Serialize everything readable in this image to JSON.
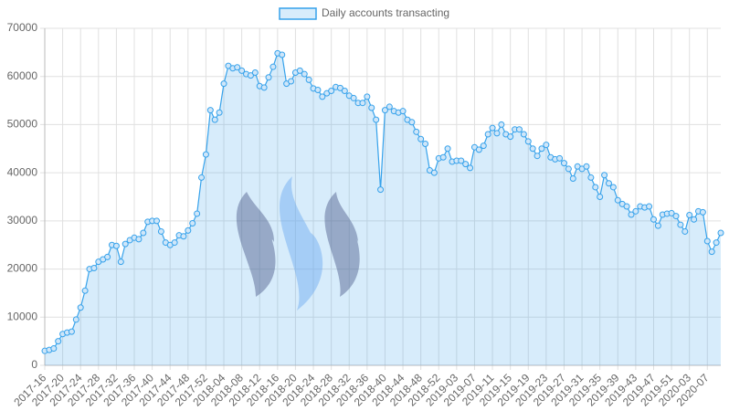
{
  "chart_data": {
    "type": "line",
    "categories": [
      "2017-16",
      null,
      null,
      null,
      "2017-20",
      null,
      null,
      null,
      "2017-24",
      null,
      null,
      null,
      "2017-28",
      null,
      null,
      null,
      "2017-32",
      null,
      null,
      null,
      "2017-36",
      null,
      null,
      null,
      "2017-40",
      null,
      null,
      null,
      "2017-44",
      null,
      null,
      null,
      "2017-48",
      null,
      null,
      null,
      "2017-52",
      null,
      null,
      null,
      "2018-04",
      null,
      null,
      null,
      "2018-08",
      null,
      null,
      null,
      "2018-12",
      null,
      null,
      null,
      "2018-16",
      null,
      null,
      null,
      "2018-20",
      null,
      null,
      null,
      "2018-24",
      null,
      null,
      null,
      "2018-28",
      null,
      null,
      null,
      "2018-32",
      null,
      null,
      null,
      "2018-36",
      null,
      null,
      null,
      "2018-40",
      null,
      null,
      null,
      "2018-44",
      null,
      null,
      null,
      "2018-48",
      null,
      null,
      null,
      "2018-52",
      null,
      null,
      null,
      "2019-03",
      null,
      null,
      null,
      "2019-07",
      null,
      null,
      null,
      "2019-11",
      null,
      null,
      null,
      "2019-15",
      null,
      null,
      null,
      "2019-19",
      null,
      null,
      null,
      "2019-23",
      null,
      null,
      null,
      "2019-27",
      null,
      null,
      null,
      "2019-31",
      null,
      null,
      null,
      "2019-35",
      null,
      null,
      null,
      "2019-39",
      null,
      null,
      null,
      "2019-43",
      null,
      null,
      null,
      "2019-47",
      null,
      null,
      null,
      "2019-51",
      null,
      null,
      null,
      "2020-03",
      null,
      null,
      null,
      "2020-07",
      null,
      null,
      null
    ],
    "series": [
      {
        "name": "Daily accounts transacting",
        "color": "#36a2eb",
        "values": [
          3000,
          3200,
          3500,
          5000,
          6500,
          6800,
          7000,
          9500,
          12000,
          15500,
          20000,
          20200,
          21500,
          22000,
          22500,
          25000,
          24800,
          21500,
          25200,
          26000,
          26500,
          26200,
          27500,
          29800,
          30000,
          30000,
          27800,
          25500,
          25000,
          25500,
          27000,
          26800,
          28000,
          29500,
          31500,
          39000,
          43800,
          53000,
          51000,
          52500,
          58500,
          62200,
          61700,
          61900,
          61200,
          60500,
          60200,
          60800,
          58000,
          57700,
          59800,
          62000,
          64800,
          64500,
          58500,
          59000,
          60800,
          61200,
          60500,
          59300,
          57500,
          57200,
          55800,
          56500,
          57000,
          57800,
          57600,
          57000,
          56000,
          55500,
          54500,
          54500,
          55800,
          53500,
          51000,
          36500,
          53000,
          53700,
          52800,
          52500,
          52800,
          51000,
          50500,
          48500,
          47000,
          46000,
          40500,
          40000,
          43000,
          43200,
          45000,
          42300,
          42500,
          42500,
          41800,
          41000,
          45300,
          44800,
          45600,
          48000,
          49300,
          48200,
          50000,
          48000,
          47500,
          49000,
          49000,
          48000,
          46500,
          45000,
          43500,
          45000,
          45800,
          43200,
          42800,
          43000,
          42000,
          40800,
          38800,
          41300,
          40800,
          41300,
          39000,
          37000,
          35000,
          39500,
          37800,
          37000,
          34300,
          33500,
          33000,
          31300,
          32000,
          33000,
          32800,
          33000,
          30300,
          29000,
          31300,
          31500,
          31600,
          31000,
          29200,
          27800,
          31200,
          30300,
          32000,
          31800,
          25800,
          23600,
          25500,
          27500
        ]
      }
    ],
    "ylim": [
      0,
      70000
    ],
    "yticks": [
      0,
      10000,
      20000,
      30000,
      40000,
      50000,
      60000,
      70000
    ],
    "grid": true,
    "legend": "top"
  }
}
